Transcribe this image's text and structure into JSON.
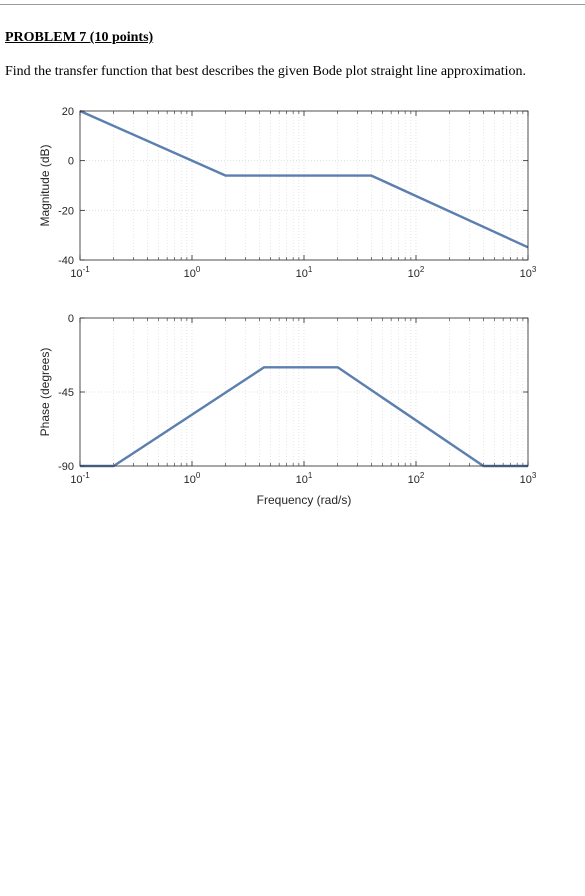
{
  "document": {
    "title": "PROBLEM 7 (10 points)",
    "question": "Find the transfer function that best describes the given Bode plot straight line approximation."
  },
  "colors": {
    "line": "#5b7fae",
    "grid": "#d9d9d9",
    "axis": "#262626"
  },
  "chart_data": [
    {
      "type": "line",
      "xscale": "log",
      "xlim": [
        0.1,
        1000
      ],
      "ylim": [
        -40,
        20
      ],
      "xticks": [
        0.1,
        1,
        10,
        100,
        1000
      ],
      "xticklabels": [
        "10^-1",
        "10^0",
        "10^1",
        "10^2",
        "10^3"
      ],
      "yticks": [
        -40,
        -20,
        0,
        20
      ],
      "yticklabels": [
        "-40",
        "-20",
        "0",
        "20"
      ],
      "ylabel": "Magnitude (dB)",
      "xlabel": "",
      "grid": true,
      "series": [
        {
          "x": [
            0.1,
            2,
            40,
            1000
          ],
          "y": [
            20,
            -6,
            -6,
            -34.9
          ]
        }
      ]
    },
    {
      "type": "line",
      "xscale": "log",
      "xlim": [
        0.1,
        1000
      ],
      "ylim": [
        -90,
        0
      ],
      "xticks": [
        0.1,
        1,
        10,
        100,
        1000
      ],
      "xticklabels": [
        "10^-1",
        "10^0",
        "10^1",
        "10^2",
        "10^3"
      ],
      "yticks": [
        -90,
        -45,
        0
      ],
      "yticklabels": [
        "-90",
        "-45",
        "0"
      ],
      "ylabel": "Phase (degrees)",
      "xlabel": "Frequency (rad/s)",
      "grid": true,
      "series": [
        {
          "x": [
            0.1,
            0.2,
            4.4,
            20,
            400,
            1000
          ],
          "y": [
            -90,
            -90,
            -30,
            -30,
            -90,
            -90
          ]
        }
      ]
    }
  ]
}
